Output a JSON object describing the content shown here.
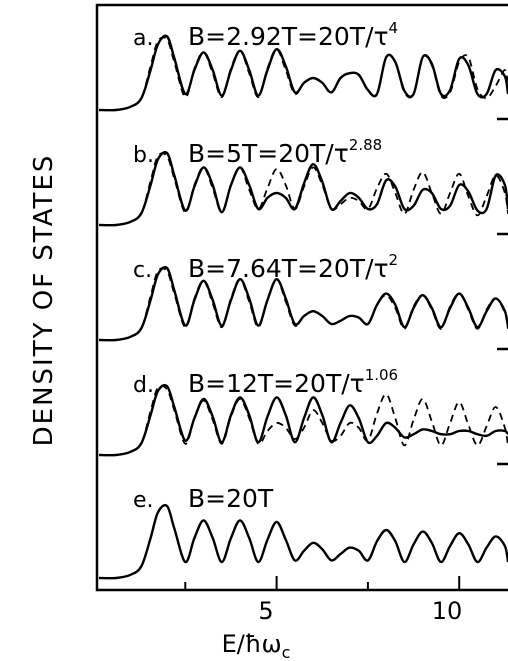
{
  "chart_data": {
    "type": "line",
    "xlabel": "E/ħω",
    "xlabel_sub": "c",
    "ylabel": "DENSITY OF STATES",
    "xlim": [
      0,
      11.5
    ],
    "x_ticks": [
      5,
      10
    ],
    "x_minor_ticks": [
      2.5,
      7.5
    ],
    "grid": false,
    "legend": "none",
    "line_styles": {
      "solid": "solid",
      "dashed": "dashed"
    },
    "panels": [
      {
        "letter": "a.",
        "label_main": "B=2.92T=20T/τ",
        "label_sup": "4"
      },
      {
        "letter": "b.",
        "label_main": "B=5T=20T/τ",
        "label_sup": "2.88"
      },
      {
        "letter": "c.",
        "label_main": "B=7.64T=20T/τ",
        "label_sup": "2"
      },
      {
        "letter": "d.",
        "label_main": "B=12T=20T/τ",
        "label_sup": "1.06"
      },
      {
        "letter": "e.",
        "label_main": "B=20T",
        "label_sup": ""
      }
    ],
    "series": [
      {
        "style": "solid",
        "panel": 0,
        "x": [
          0.6,
          1.0,
          1.3,
          1.55,
          1.75,
          2.0,
          2.2,
          2.5,
          2.75,
          3.0,
          3.25,
          3.5,
          3.75,
          4.0,
          4.25,
          4.5,
          4.75,
          5.0,
          5.25,
          5.5,
          5.75,
          6.0,
          6.25,
          6.5,
          6.75,
          7.0,
          7.25,
          7.5,
          7.75,
          8.0,
          8.25,
          8.5,
          8.75,
          9.0,
          9.25,
          9.5,
          9.75,
          10.0,
          10.25,
          10.5,
          10.75,
          11.0,
          11.25,
          11.5
        ],
        "y": [
          0.0,
          0.04,
          0.15,
          0.5,
          0.82,
          0.92,
          0.65,
          0.2,
          0.5,
          0.72,
          0.5,
          0.18,
          0.5,
          0.74,
          0.5,
          0.18,
          0.5,
          0.76,
          0.55,
          0.22,
          0.34,
          0.4,
          0.34,
          0.22,
          0.4,
          0.46,
          0.44,
          0.25,
          0.2,
          0.66,
          0.6,
          0.24,
          0.2,
          0.66,
          0.58,
          0.2,
          0.25,
          0.64,
          0.56,
          0.2,
          0.2,
          0.5,
          0.42,
          0.2
        ]
      },
      {
        "style": "dashed",
        "panel": 0,
        "x": [
          0.6,
          1.0,
          1.3,
          1.55,
          1.75,
          2.0,
          2.2,
          2.5,
          2.75,
          3.0,
          3.25,
          3.5,
          3.75,
          4.0,
          4.25,
          4.5,
          4.75,
          5.0,
          5.25,
          5.5,
          5.75,
          6.0,
          6.25,
          6.5,
          6.75,
          7.0,
          7.25,
          7.5,
          7.75,
          8.0,
          8.25,
          8.5,
          8.75,
          9.0,
          9.25,
          9.5,
          9.75,
          10.0,
          10.25,
          10.5,
          10.75,
          11.0,
          11.25,
          11.5
        ],
        "y": [
          0.0,
          0.04,
          0.15,
          0.55,
          0.86,
          0.88,
          0.6,
          0.16,
          0.52,
          0.72,
          0.46,
          0.16,
          0.52,
          0.74,
          0.46,
          0.16,
          0.52,
          0.76,
          0.5,
          0.2,
          0.34,
          0.4,
          0.34,
          0.22,
          0.4,
          0.46,
          0.44,
          0.24,
          0.2,
          0.66,
          0.6,
          0.22,
          0.2,
          0.66,
          0.56,
          0.18,
          0.22,
          0.6,
          0.66,
          0.26,
          0.15,
          0.3,
          0.5,
          0.3
        ]
      },
      {
        "style": "solid",
        "panel": 1,
        "x": [
          0.6,
          1.0,
          1.3,
          1.55,
          1.75,
          2.0,
          2.2,
          2.5,
          2.75,
          3.0,
          3.25,
          3.5,
          3.75,
          4.0,
          4.25,
          4.5,
          4.75,
          5.0,
          5.25,
          5.5,
          5.75,
          6.0,
          6.25,
          6.5,
          6.75,
          7.0,
          7.25,
          7.5,
          7.75,
          8.0,
          8.25,
          8.5,
          8.75,
          9.0,
          9.25,
          9.5,
          9.75,
          10.0,
          10.25,
          10.5,
          10.75,
          11.0,
          11.25,
          11.5
        ],
        "y": [
          0.0,
          0.04,
          0.15,
          0.5,
          0.82,
          0.9,
          0.62,
          0.18,
          0.48,
          0.72,
          0.5,
          0.16,
          0.5,
          0.72,
          0.5,
          0.2,
          0.34,
          0.4,
          0.34,
          0.2,
          0.52,
          0.76,
          0.54,
          0.2,
          0.3,
          0.4,
          0.34,
          0.2,
          0.26,
          0.56,
          0.48,
          0.2,
          0.24,
          0.44,
          0.4,
          0.2,
          0.24,
          0.5,
          0.42,
          0.18,
          0.2,
          0.62,
          0.5,
          0.2
        ]
      },
      {
        "style": "dashed",
        "panel": 1,
        "x": [
          0.6,
          1.0,
          1.3,
          1.55,
          1.75,
          2.0,
          2.2,
          2.5,
          2.75,
          3.0,
          3.25,
          3.5,
          3.75,
          4.0,
          4.25,
          4.5,
          4.75,
          5.0,
          5.25,
          5.5,
          5.75,
          6.0,
          6.25,
          6.5,
          6.75,
          7.0,
          7.25,
          7.5,
          7.75,
          8.0,
          8.25,
          8.5,
          8.75,
          9.0,
          9.25,
          9.5,
          9.75,
          10.0,
          10.25,
          10.5,
          10.75,
          11.0,
          11.25,
          11.5
        ],
        "y": [
          0.0,
          0.04,
          0.15,
          0.55,
          0.86,
          0.86,
          0.58,
          0.16,
          0.5,
          0.72,
          0.46,
          0.16,
          0.5,
          0.72,
          0.44,
          0.2,
          0.46,
          0.7,
          0.5,
          0.2,
          0.48,
          0.72,
          0.5,
          0.2,
          0.26,
          0.34,
          0.3,
          0.2,
          0.46,
          0.64,
          0.4,
          0.14,
          0.44,
          0.66,
          0.4,
          0.14,
          0.4,
          0.64,
          0.36,
          0.12,
          0.36,
          0.62,
          0.4,
          0.14
        ]
      },
      {
        "style": "solid",
        "panel": 2,
        "x": [
          0.6,
          1.0,
          1.3,
          1.55,
          1.75,
          2.0,
          2.2,
          2.5,
          2.75,
          3.0,
          3.25,
          3.5,
          3.75,
          4.0,
          4.25,
          4.5,
          4.75,
          5.0,
          5.25,
          5.5,
          5.75,
          6.0,
          6.25,
          6.5,
          6.75,
          7.0,
          7.25,
          7.5,
          7.75,
          8.0,
          8.25,
          8.5,
          8.75,
          9.0,
          9.25,
          9.5,
          9.75,
          10.0,
          10.25,
          10.5,
          10.75,
          11.0,
          11.25,
          11.5
        ],
        "y": [
          0.0,
          0.04,
          0.15,
          0.5,
          0.82,
          0.9,
          0.62,
          0.18,
          0.5,
          0.74,
          0.5,
          0.18,
          0.5,
          0.76,
          0.52,
          0.18,
          0.5,
          0.76,
          0.52,
          0.2,
          0.3,
          0.36,
          0.3,
          0.2,
          0.24,
          0.3,
          0.28,
          0.2,
          0.44,
          0.58,
          0.44,
          0.16,
          0.4,
          0.56,
          0.4,
          0.16,
          0.4,
          0.58,
          0.4,
          0.16,
          0.36,
          0.52,
          0.36,
          0.16
        ]
      },
      {
        "style": "dashed",
        "panel": 2,
        "x": [
          0.6,
          1.0,
          1.3,
          1.55,
          1.75,
          2.0,
          2.2,
          2.5,
          2.75,
          3.0,
          3.25,
          3.5,
          3.75,
          4.0,
          4.25,
          4.5,
          4.75,
          5.0,
          5.25,
          5.5,
          5.75,
          6.0,
          6.25,
          6.5,
          6.75,
          7.0,
          7.25,
          7.5,
          7.75,
          8.0,
          8.25,
          8.5,
          8.75,
          9.0,
          9.25,
          9.5,
          9.75,
          10.0,
          10.25,
          10.5,
          10.75,
          11.0,
          11.25,
          11.5
        ],
        "y": [
          0.0,
          0.04,
          0.15,
          0.55,
          0.86,
          0.86,
          0.58,
          0.16,
          0.52,
          0.74,
          0.46,
          0.16,
          0.52,
          0.76,
          0.48,
          0.16,
          0.5,
          0.76,
          0.48,
          0.18,
          0.3,
          0.36,
          0.3,
          0.2,
          0.24,
          0.3,
          0.28,
          0.2,
          0.44,
          0.56,
          0.4,
          0.14,
          0.42,
          0.56,
          0.38,
          0.14,
          0.42,
          0.58,
          0.38,
          0.14,
          0.38,
          0.52,
          0.34,
          0.14
        ]
      },
      {
        "style": "solid",
        "panel": 3,
        "x": [
          0.6,
          1.0,
          1.3,
          1.55,
          1.75,
          2.0,
          2.2,
          2.5,
          2.75,
          3.0,
          3.25,
          3.5,
          3.75,
          4.0,
          4.25,
          4.5,
          4.75,
          5.0,
          5.25,
          5.5,
          5.75,
          6.0,
          6.25,
          6.5,
          6.75,
          7.0,
          7.25,
          7.5,
          7.75,
          8.0,
          8.25,
          8.5,
          8.75,
          9.0,
          9.25,
          9.5,
          9.75,
          10.0,
          10.25,
          10.5,
          10.75,
          11.0,
          11.25,
          11.5
        ],
        "y": [
          0.0,
          0.04,
          0.15,
          0.5,
          0.8,
          0.86,
          0.6,
          0.18,
          0.46,
          0.7,
          0.48,
          0.16,
          0.5,
          0.72,
          0.5,
          0.16,
          0.48,
          0.72,
          0.5,
          0.16,
          0.46,
          0.72,
          0.5,
          0.16,
          0.4,
          0.62,
          0.46,
          0.16,
          0.24,
          0.4,
          0.34,
          0.22,
          0.26,
          0.32,
          0.3,
          0.26,
          0.26,
          0.3,
          0.3,
          0.26,
          0.24,
          0.3,
          0.3,
          0.26
        ]
      },
      {
        "style": "dashed",
        "panel": 3,
        "x": [
          0.6,
          1.0,
          1.3,
          1.55,
          1.75,
          2.0,
          2.2,
          2.5,
          2.75,
          3.0,
          3.25,
          3.5,
          3.75,
          4.0,
          4.25,
          4.5,
          4.75,
          5.0,
          5.25,
          5.5,
          5.75,
          6.0,
          6.25,
          6.5,
          6.75,
          7.0,
          7.25,
          7.5,
          7.75,
          8.0,
          8.25,
          8.5,
          8.75,
          9.0,
          9.25,
          9.5,
          9.75,
          10.0,
          10.25,
          10.5,
          10.75,
          11.0,
          11.25,
          11.5
        ],
        "y": [
          0.0,
          0.04,
          0.15,
          0.55,
          0.84,
          0.82,
          0.56,
          0.14,
          0.46,
          0.68,
          0.44,
          0.14,
          0.48,
          0.7,
          0.46,
          0.14,
          0.3,
          0.4,
          0.34,
          0.2,
          0.34,
          0.56,
          0.4,
          0.18,
          0.24,
          0.4,
          0.34,
          0.18,
          0.52,
          0.76,
          0.46,
          0.12,
          0.44,
          0.7,
          0.42,
          0.12,
          0.4,
          0.66,
          0.38,
          0.12,
          0.36,
          0.6,
          0.34,
          0.12
        ]
      },
      {
        "style": "solid",
        "panel": 4,
        "x": [
          0.6,
          1.0,
          1.3,
          1.55,
          1.75,
          2.0,
          2.2,
          2.5,
          2.75,
          3.0,
          3.25,
          3.5,
          3.75,
          4.0,
          4.25,
          4.5,
          4.75,
          5.0,
          5.25,
          5.5,
          5.75,
          6.0,
          6.25,
          6.5,
          6.75,
          7.0,
          7.25,
          7.5,
          7.75,
          8.0,
          8.25,
          8.5,
          8.75,
          9.0,
          9.25,
          9.5,
          9.75,
          10.0,
          10.25,
          10.5,
          10.75,
          11.0,
          11.25,
          11.5
        ],
        "y": [
          0.0,
          0.04,
          0.15,
          0.5,
          0.82,
          0.9,
          0.62,
          0.2,
          0.5,
          0.72,
          0.5,
          0.2,
          0.5,
          0.72,
          0.5,
          0.2,
          0.48,
          0.7,
          0.48,
          0.22,
          0.34,
          0.44,
          0.36,
          0.22,
          0.3,
          0.38,
          0.34,
          0.22,
          0.46,
          0.6,
          0.46,
          0.2,
          0.42,
          0.58,
          0.44,
          0.2,
          0.4,
          0.56,
          0.42,
          0.2,
          0.38,
          0.52,
          0.4,
          0.2
        ]
      }
    ]
  }
}
